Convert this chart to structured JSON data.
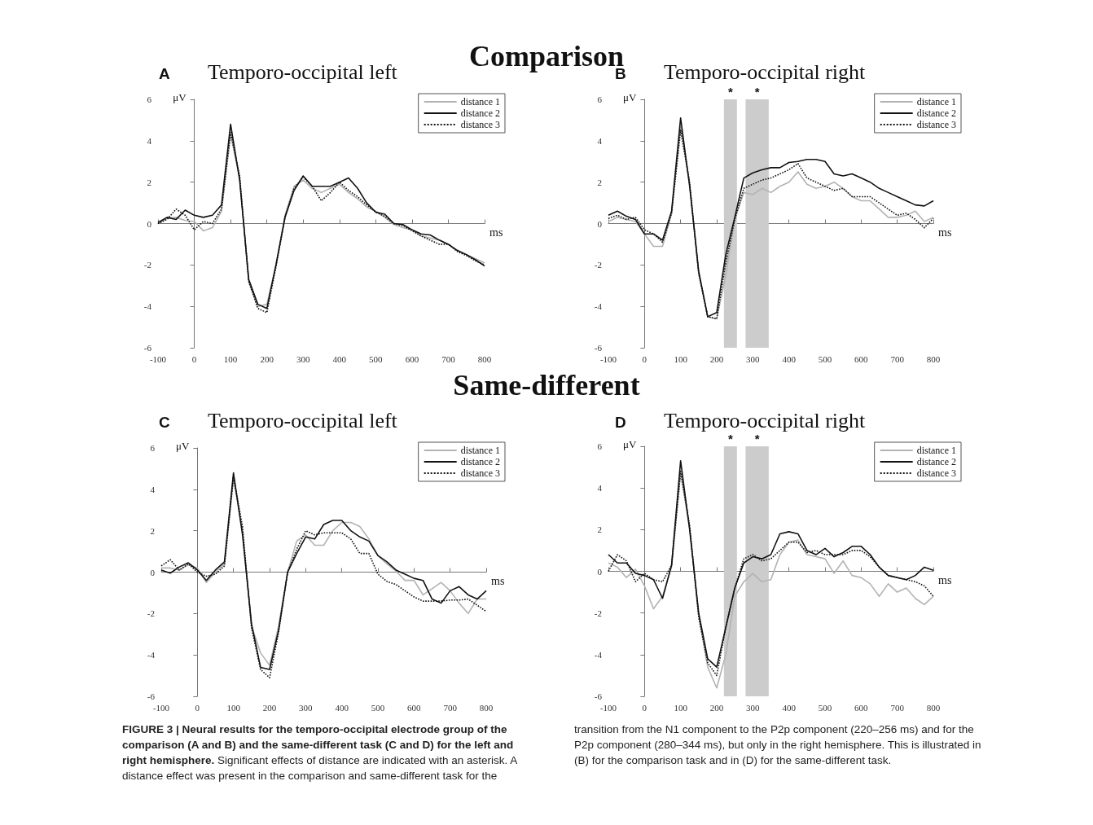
{
  "chart_data": [
    {
      "type": "other",
      "title": "Comparison"
    },
    {
      "type": "line",
      "title": "Temporo-occipital left",
      "subtitle": "A",
      "xlabel": "ms",
      "ylabel": "μV",
      "legend": "top right",
      "marker": "none",
      "xlim": [
        -100,
        800
      ],
      "xticks": [
        -100,
        0,
        100,
        200,
        300,
        400,
        500,
        600,
        700,
        800
      ],
      "ylim": [
        -6,
        6
      ],
      "yticks": [
        -6,
        -4,
        -2,
        0,
        2,
        4,
        6
      ],
      "x": [
        -100,
        -75,
        -50,
        -25,
        0,
        25,
        50,
        75,
        100,
        125,
        150,
        175,
        200,
        225,
        250,
        275,
        300,
        325,
        350,
        375,
        400,
        425,
        450,
        475,
        500,
        525,
        550,
        575,
        600,
        625,
        650,
        675,
        700,
        725,
        750,
        775,
        800
      ],
      "series": [
        {
          "name": "distance 1",
          "color": "#b3b3b3",
          "line_style": "solid",
          "values": [
            0.0,
            0.25,
            0.3,
            0.15,
            0.1,
            -0.35,
            -0.2,
            0.6,
            4.3,
            2.2,
            -2.8,
            -4.0,
            -3.9,
            -2.0,
            0.4,
            1.8,
            2.1,
            1.7,
            1.5,
            1.7,
            1.9,
            1.5,
            1.2,
            0.8,
            0.6,
            0.3,
            -0.05,
            -0.2,
            -0.3,
            -0.6,
            -0.7,
            -0.8,
            -1.0,
            -1.3,
            -1.5,
            -1.7,
            -1.9
          ]
        },
        {
          "name": "distance 2",
          "color": "#111111",
          "line_style": "solid",
          "values": [
            0.05,
            0.3,
            0.2,
            0.65,
            0.4,
            0.3,
            0.4,
            0.9,
            4.8,
            2.1,
            -2.7,
            -3.9,
            -4.1,
            -2.0,
            0.3,
            1.6,
            2.3,
            1.8,
            1.8,
            1.8,
            2.0,
            2.2,
            1.7,
            1.0,
            0.55,
            0.45,
            0.0,
            -0.05,
            -0.3,
            -0.5,
            -0.55,
            -0.8,
            -1.0,
            -1.3,
            -1.5,
            -1.75,
            -2.05
          ]
        },
        {
          "name": "distance 3",
          "color": "#111111",
          "line_style": "dotted",
          "values": [
            0.0,
            0.2,
            0.7,
            0.4,
            -0.3,
            0.1,
            0.0,
            0.7,
            4.4,
            2.3,
            -2.8,
            -4.1,
            -4.3,
            -2.1,
            0.3,
            1.7,
            2.25,
            1.8,
            1.1,
            1.5,
            2.0,
            1.6,
            1.3,
            0.9,
            0.55,
            0.35,
            0.0,
            -0.1,
            -0.35,
            -0.6,
            -0.8,
            -1.0,
            -1.0,
            -1.35,
            -1.55,
            -1.8,
            -2.0
          ]
        }
      ]
    },
    {
      "type": "line",
      "title": "Temporo-occipital right",
      "subtitle": "B",
      "xlabel": "ms",
      "ylabel": "μV",
      "legend": "top right",
      "marker": "none",
      "xlim": [
        -100,
        800
      ],
      "xticks": [
        -100,
        0,
        100,
        200,
        300,
        400,
        500,
        600,
        700,
        800
      ],
      "ylim": [
        -6,
        6
      ],
      "yticks": [
        -6,
        -4,
        -2,
        0,
        2,
        4,
        6
      ],
      "bands": [
        {
          "axis": "x",
          "from": 220,
          "to": 256,
          "label": "*",
          "color": "#cccccc"
        },
        {
          "axis": "x",
          "from": 280,
          "to": 344,
          "label": "*",
          "color": "#cccccc"
        }
      ],
      "x": [
        -100,
        -75,
        -50,
        -25,
        0,
        25,
        50,
        75,
        100,
        125,
        150,
        175,
        200,
        225,
        250,
        275,
        300,
        325,
        350,
        375,
        400,
        425,
        450,
        475,
        500,
        525,
        550,
        575,
        600,
        625,
        650,
        675,
        700,
        725,
        750,
        775,
        800
      ],
      "series": [
        {
          "name": "distance 1",
          "color": "#b3b3b3",
          "line_style": "solid",
          "values": [
            0.1,
            0.3,
            0.2,
            0.1,
            -0.5,
            -1.1,
            -1.1,
            0.5,
            4.7,
            1.9,
            -2.4,
            -4.5,
            -4.6,
            -2.5,
            0.2,
            1.5,
            1.4,
            1.7,
            1.5,
            1.8,
            2.0,
            2.5,
            1.9,
            1.7,
            1.8,
            2.0,
            1.7,
            1.3,
            1.1,
            1.1,
            0.7,
            0.3,
            0.3,
            0.4,
            0.6,
            0.1,
            0.3
          ]
        },
        {
          "name": "distance 2",
          "color": "#111111",
          "line_style": "solid",
          "values": [
            0.4,
            0.6,
            0.35,
            0.2,
            -0.5,
            -0.5,
            -0.8,
            0.6,
            5.1,
            1.8,
            -2.3,
            -4.5,
            -4.3,
            -1.5,
            0.3,
            2.2,
            2.45,
            2.6,
            2.7,
            2.7,
            2.95,
            3.0,
            3.1,
            3.1,
            3.0,
            2.4,
            2.3,
            2.4,
            2.2,
            2.0,
            1.7,
            1.5,
            1.3,
            1.1,
            0.9,
            0.85,
            1.1
          ]
        },
        {
          "name": "distance 3",
          "color": "#111111",
          "line_style": "dotted",
          "values": [
            0.25,
            0.4,
            0.2,
            0.3,
            -0.3,
            -0.5,
            -0.9,
            0.5,
            4.5,
            2.0,
            -2.4,
            -4.5,
            -4.6,
            -1.9,
            0.2,
            1.7,
            1.9,
            2.1,
            2.2,
            2.4,
            2.6,
            2.9,
            2.2,
            2.0,
            1.8,
            1.6,
            1.7,
            1.3,
            1.3,
            1.3,
            1.0,
            0.7,
            0.4,
            0.5,
            0.2,
            -0.2,
            0.25
          ]
        }
      ]
    },
    {
      "type": "other",
      "title": "Same-different"
    },
    {
      "type": "line",
      "title": "Temporo-occipital left",
      "subtitle": "C",
      "xlabel": "ms",
      "ylabel": "μV",
      "legend": "top right",
      "marker": "none",
      "xlim": [
        -100,
        800
      ],
      "xticks": [
        -100,
        0,
        100,
        200,
        300,
        400,
        500,
        600,
        700,
        800
      ],
      "ylim": [
        -6,
        6
      ],
      "yticks": [
        -6,
        -4,
        -2,
        0,
        2,
        4,
        6
      ],
      "x": [
        -100,
        -75,
        -50,
        -25,
        0,
        25,
        50,
        75,
        100,
        125,
        150,
        175,
        200,
        225,
        250,
        275,
        300,
        325,
        350,
        375,
        400,
        425,
        450,
        475,
        500,
        525,
        550,
        575,
        600,
        625,
        650,
        675,
        700,
        725,
        750,
        775,
        800
      ],
      "series": [
        {
          "name": "distance 1",
          "color": "#b3b3b3",
          "line_style": "solid",
          "values": [
            0.2,
            0.2,
            0.1,
            0.35,
            0.2,
            -0.5,
            0.0,
            0.4,
            4.5,
            2.0,
            -2.6,
            -3.9,
            -4.5,
            -2.6,
            0.0,
            1.5,
            1.8,
            1.3,
            1.3,
            2.0,
            2.4,
            2.4,
            2.2,
            1.6,
            0.8,
            0.4,
            0.05,
            -0.4,
            -0.4,
            -1.1,
            -0.8,
            -0.5,
            -0.9,
            -1.5,
            -2.0,
            -1.3,
            -1.3
          ]
        },
        {
          "name": "distance 2",
          "color": "#111111",
          "line_style": "solid",
          "values": [
            0.1,
            -0.05,
            0.25,
            0.45,
            0.1,
            -0.4,
            0.1,
            0.5,
            4.8,
            1.8,
            -2.5,
            -4.6,
            -4.7,
            -2.8,
            0.0,
            0.9,
            1.7,
            1.6,
            2.3,
            2.5,
            2.5,
            2.0,
            1.7,
            1.5,
            0.8,
            0.5,
            0.1,
            -0.1,
            -0.3,
            -0.4,
            -1.3,
            -1.5,
            -0.9,
            -0.7,
            -1.1,
            -1.3,
            -0.9
          ]
        },
        {
          "name": "distance 3",
          "color": "#111111",
          "line_style": "dotted",
          "values": [
            0.3,
            0.6,
            0.1,
            0.4,
            0.0,
            -0.2,
            -0.1,
            0.3,
            4.6,
            2.2,
            -2.7,
            -4.7,
            -5.1,
            -2.9,
            0.0,
            1.1,
            2.0,
            1.8,
            1.9,
            1.9,
            1.9,
            1.6,
            0.9,
            0.9,
            -0.1,
            -0.45,
            -0.6,
            -0.9,
            -1.2,
            -1.4,
            -1.4,
            -1.4,
            -1.35,
            -1.35,
            -1.3,
            -1.6,
            -1.9
          ]
        }
      ]
    },
    {
      "type": "line",
      "title": "Temporo-occipital right",
      "subtitle": "D",
      "xlabel": "ms",
      "ylabel": "μV",
      "legend": "top right",
      "marker": "none",
      "xlim": [
        -100,
        800
      ],
      "xticks": [
        -100,
        0,
        100,
        200,
        300,
        400,
        500,
        600,
        700,
        800
      ],
      "ylim": [
        -6,
        6
      ],
      "yticks": [
        -6,
        -4,
        -2,
        0,
        2,
        4,
        6
      ],
      "bands": [
        {
          "axis": "x",
          "from": 220,
          "to": 256,
          "label": "*",
          "color": "#cccccc"
        },
        {
          "axis": "x",
          "from": 280,
          "to": 344,
          "label": "*",
          "color": "#cccccc"
        }
      ],
      "x": [
        -100,
        -75,
        -50,
        -25,
        0,
        25,
        50,
        75,
        100,
        125,
        150,
        175,
        200,
        225,
        250,
        275,
        300,
        325,
        350,
        375,
        400,
        425,
        450,
        475,
        500,
        525,
        550,
        575,
        600,
        625,
        650,
        675,
        700,
        725,
        750,
        775,
        800
      ],
      "series": [
        {
          "name": "distance 1",
          "color": "#b3b3b3",
          "line_style": "solid",
          "values": [
            0.4,
            0.2,
            -0.3,
            0.1,
            -0.7,
            -1.8,
            -1.2,
            0.2,
            4.7,
            2.1,
            -2.1,
            -4.6,
            -5.6,
            -4.0,
            -1.2,
            -0.5,
            -0.1,
            -0.5,
            -0.4,
            0.8,
            1.4,
            1.5,
            0.8,
            0.7,
            0.6,
            -0.1,
            0.5,
            -0.2,
            -0.3,
            -0.6,
            -1.2,
            -0.6,
            -1.0,
            -0.8,
            -1.3,
            -1.6,
            -1.2
          ]
        },
        {
          "name": "distance 2",
          "color": "#111111",
          "line_style": "solid",
          "values": [
            0.8,
            0.4,
            0.4,
            -0.1,
            -0.2,
            -0.4,
            -1.3,
            0.3,
            5.3,
            2.0,
            -2.0,
            -4.2,
            -4.6,
            -2.7,
            -0.8,
            0.4,
            0.7,
            0.6,
            0.8,
            1.8,
            1.9,
            1.8,
            1.0,
            0.8,
            1.1,
            0.7,
            0.9,
            1.2,
            1.2,
            0.8,
            0.2,
            -0.2,
            -0.3,
            -0.4,
            -0.2,
            0.2,
            0.05
          ]
        },
        {
          "name": "distance 3",
          "color": "#111111",
          "line_style": "dotted",
          "values": [
            0.0,
            0.8,
            0.5,
            -0.5,
            -0.1,
            -0.4,
            -0.5,
            0.3,
            4.8,
            2.2,
            -2.2,
            -4.4,
            -5.0,
            -2.7,
            -0.8,
            0.6,
            0.8,
            0.5,
            0.6,
            1.0,
            1.4,
            1.4,
            0.9,
            1.0,
            0.8,
            0.8,
            0.8,
            1.0,
            1.0,
            0.7,
            0.2,
            -0.2,
            -0.3,
            -0.4,
            -0.5,
            -0.7,
            -1.2
          ]
        }
      ]
    },
    {
      "type": "other",
      "annotations": [
        "FIGURE 3 | Neural results for the temporo-occipital electrode group of the comparison (A and B) and the same-different task (C and D) for the left and right hemisphere.",
        "Significant effects of distance are indicated with an asterisk. A distance effect was present in the comparison and same-different task for the transition from the N1 component to the P2p component (220–256 ms) and for the P2p component (280–344 ms), but only in the right hemisphere. This is illustrated in (B) for the comparison task and in (D) for the same-different task."
      ]
    }
  ]
}
